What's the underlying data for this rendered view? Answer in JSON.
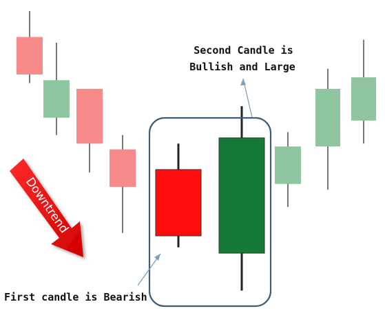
{
  "colors": {
    "bear_light": "#f88a8a",
    "bull_light": "#8fc4a0",
    "bear_strong": "#ff0d0d",
    "bull_strong": "#157a38",
    "wick": "#555555",
    "strong_wick": "#222222",
    "highlight_box": "#3c5d7a",
    "arrow": "#e60000",
    "pointer": "#7f9fb8"
  },
  "chart_data": {
    "type": "candlestick",
    "title": "",
    "xlabel": "",
    "ylabel": "",
    "ylim": [
      0,
      100
    ],
    "grid": false,
    "candles": [
      {
        "index": 0,
        "direction": "bearish",
        "open": 91,
        "close": 78,
        "high": 100,
        "low": 75,
        "highlighted": false
      },
      {
        "index": 1,
        "direction": "bullish",
        "open": 63,
        "close": 76,
        "high": 89,
        "low": 57,
        "highlighted": false
      },
      {
        "index": 2,
        "direction": "bearish",
        "open": 73,
        "close": 54,
        "high": 73,
        "low": 44,
        "highlighted": false
      },
      {
        "index": 3,
        "direction": "bearish",
        "open": 52,
        "close": 39,
        "high": 57,
        "low": 23,
        "highlighted": false
      },
      {
        "index": 4,
        "direction": "bearish",
        "open": 45,
        "close": 22,
        "high": 54,
        "low": 18,
        "highlighted": true
      },
      {
        "index": 5,
        "direction": "bullish",
        "open": 16,
        "close": 56,
        "high": 67,
        "low": 3,
        "highlighted": true
      },
      {
        "index": 6,
        "direction": "bullish",
        "open": 40,
        "close": 53,
        "high": 58,
        "low": 32,
        "highlighted": false
      },
      {
        "index": 7,
        "direction": "bullish",
        "open": 53,
        "close": 73,
        "high": 80,
        "low": 38,
        "highlighted": false
      },
      {
        "index": 8,
        "direction": "bullish",
        "open": 62,
        "close": 77,
        "high": 90,
        "low": 54,
        "highlighted": false
      }
    ],
    "annotations": [
      {
        "id": "second",
        "lines": [
          "Second Candle is",
          "Bullish and Large"
        ]
      },
      {
        "id": "first",
        "lines": [
          "First candle is Bearish"
        ]
      }
    ],
    "trend_label": "Downtrend"
  }
}
